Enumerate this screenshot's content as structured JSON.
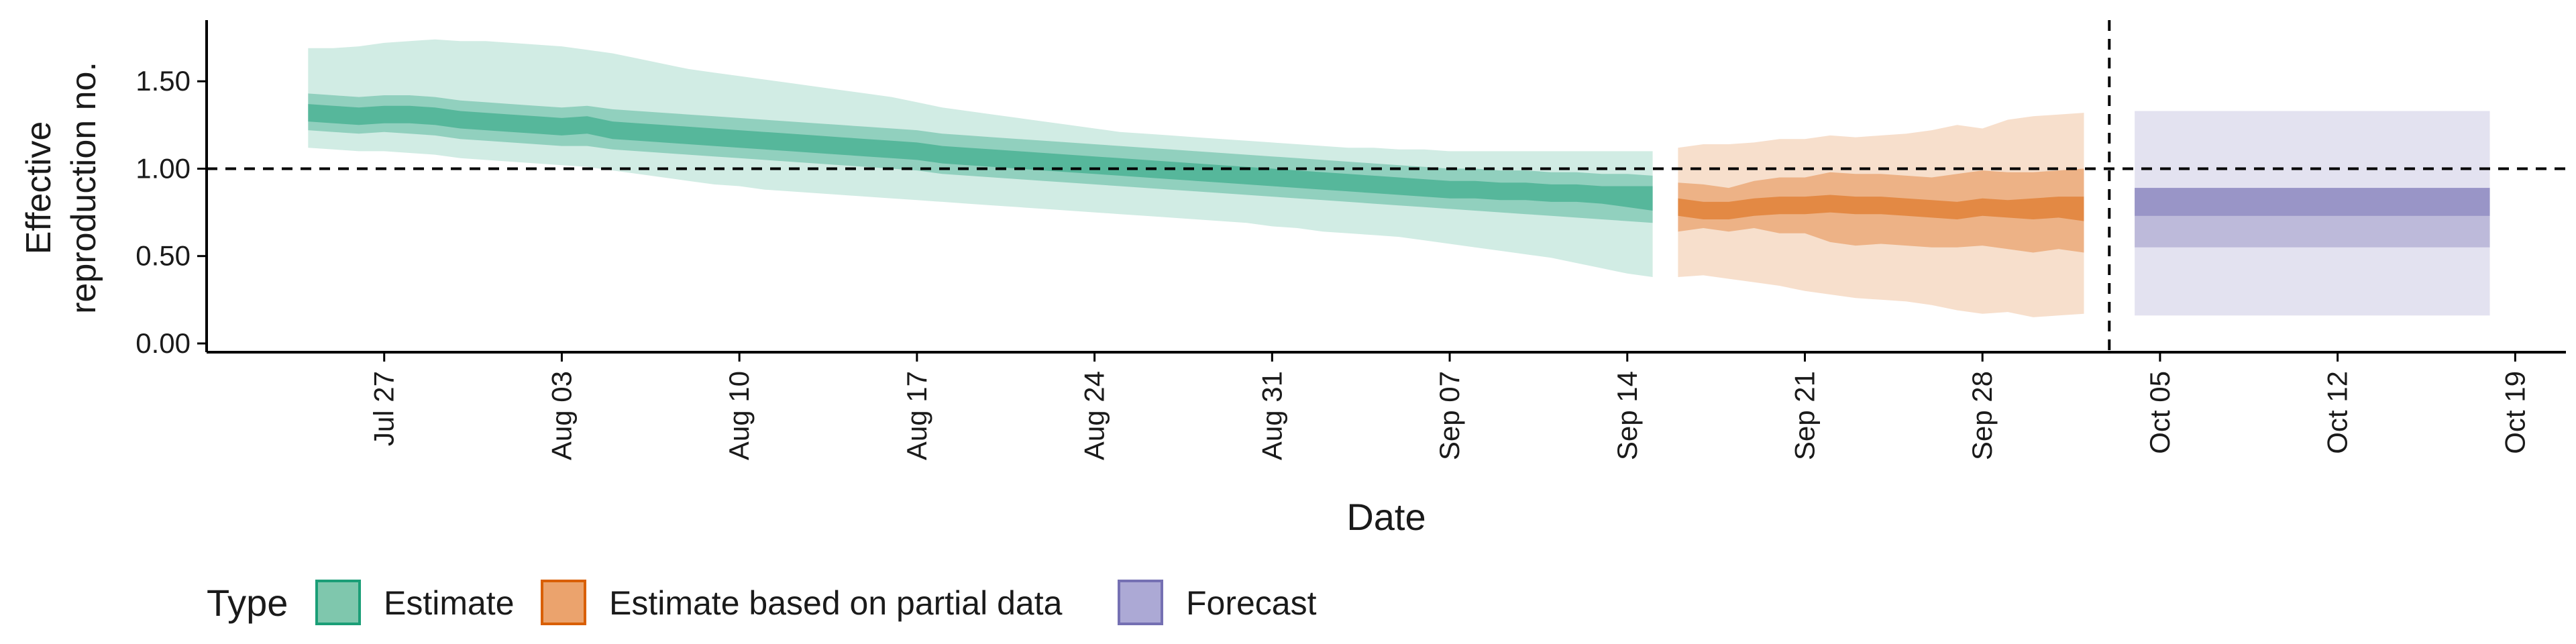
{
  "chart_data": {
    "type": "area",
    "title": "",
    "xlabel": "Date",
    "ylabel_lines": [
      "Effective",
      "reproduction no."
    ],
    "x_start": "2020-07-24",
    "xlim": [
      "2020-07-20",
      "2020-10-21"
    ],
    "ylim": [
      -0.05,
      1.85
    ],
    "y_ticks": [
      0.0,
      0.5,
      1.0,
      1.5
    ],
    "y_tick_labels": [
      "0.00",
      "0.50",
      "1.00",
      "1.50"
    ],
    "x_ticks": [
      "2020-07-27",
      "2020-08-03",
      "2020-08-10",
      "2020-08-17",
      "2020-08-24",
      "2020-08-31",
      "2020-09-07",
      "2020-09-14",
      "2020-09-21",
      "2020-09-28",
      "2020-10-05",
      "2020-10-12",
      "2020-10-19"
    ],
    "x_tick_labels": [
      "Jul 27",
      "Aug 03",
      "Aug 10",
      "Aug 17",
      "Aug 24",
      "Aug 31",
      "Sep 07",
      "Sep 14",
      "Sep 21",
      "Sep 28",
      "Oct 05",
      "Oct 12",
      "Oct 19"
    ],
    "hline": 1.0,
    "vline": "2020-10-03",
    "legend": {
      "title": "Type",
      "position": "bottom-left",
      "entries": [
        {
          "label": "Estimate",
          "fill": "#7fc7ad",
          "stroke": "#1b9e77"
        },
        {
          "label": "Estimate based on partial data",
          "fill": "#eba36d",
          "stroke": "#d95f02"
        },
        {
          "label": "Forecast",
          "fill": "#aca9d5",
          "stroke": "#7570b3"
        }
      ]
    },
    "series": [
      {
        "name": "Estimate",
        "color": "#1b9e77",
        "start": "2020-07-24",
        "days": 54,
        "median": [
          1.32,
          1.31,
          1.3,
          1.31,
          1.31,
          1.3,
          1.28,
          1.27,
          1.26,
          1.25,
          1.24,
          1.25,
          1.22,
          1.21,
          1.2,
          1.19,
          1.18,
          1.17,
          1.16,
          1.15,
          1.14,
          1.13,
          1.12,
          1.11,
          1.1,
          1.08,
          1.07,
          1.06,
          1.05,
          1.04,
          1.03,
          1.02,
          1.01,
          1.0,
          0.99,
          0.98,
          0.97,
          0.96,
          0.95,
          0.94,
          0.93,
          0.92,
          0.91,
          0.9,
          0.89,
          0.88,
          0.88,
          0.87,
          0.87,
          0.86,
          0.86,
          0.85,
          0.84,
          0.83
        ],
        "inner_lo": [
          1.27,
          1.26,
          1.25,
          1.26,
          1.26,
          1.25,
          1.23,
          1.22,
          1.21,
          1.2,
          1.19,
          1.2,
          1.17,
          1.16,
          1.15,
          1.14,
          1.13,
          1.12,
          1.11,
          1.1,
          1.09,
          1.08,
          1.07,
          1.06,
          1.05,
          1.03,
          1.02,
          1.01,
          1.0,
          0.99,
          0.98,
          0.97,
          0.96,
          0.95,
          0.94,
          0.93,
          0.92,
          0.91,
          0.9,
          0.89,
          0.88,
          0.87,
          0.86,
          0.85,
          0.84,
          0.83,
          0.83,
          0.82,
          0.82,
          0.81,
          0.81,
          0.8,
          0.78,
          0.76
        ],
        "inner_hi": [
          1.37,
          1.36,
          1.35,
          1.36,
          1.36,
          1.35,
          1.33,
          1.32,
          1.31,
          1.3,
          1.29,
          1.3,
          1.27,
          1.26,
          1.25,
          1.24,
          1.23,
          1.22,
          1.21,
          1.2,
          1.19,
          1.18,
          1.17,
          1.16,
          1.15,
          1.13,
          1.12,
          1.11,
          1.1,
          1.09,
          1.08,
          1.07,
          1.06,
          1.05,
          1.04,
          1.03,
          1.02,
          1.01,
          1.0,
          0.99,
          0.98,
          0.97,
          0.96,
          0.95,
          0.94,
          0.93,
          0.93,
          0.92,
          0.92,
          0.91,
          0.91,
          0.9,
          0.9,
          0.9
        ],
        "lo50": [
          1.22,
          1.21,
          1.2,
          1.21,
          1.2,
          1.19,
          1.17,
          1.16,
          1.15,
          1.14,
          1.13,
          1.13,
          1.11,
          1.1,
          1.09,
          1.08,
          1.07,
          1.06,
          1.05,
          1.04,
          1.03,
          1.02,
          1.01,
          1.0,
          0.99,
          0.97,
          0.96,
          0.95,
          0.94,
          0.93,
          0.92,
          0.91,
          0.9,
          0.89,
          0.88,
          0.87,
          0.86,
          0.85,
          0.84,
          0.83,
          0.82,
          0.81,
          0.8,
          0.79,
          0.78,
          0.77,
          0.76,
          0.75,
          0.74,
          0.73,
          0.72,
          0.71,
          0.7,
          0.69
        ],
        "hi50": [
          1.43,
          1.42,
          1.41,
          1.42,
          1.42,
          1.41,
          1.39,
          1.38,
          1.37,
          1.36,
          1.35,
          1.36,
          1.34,
          1.33,
          1.32,
          1.31,
          1.3,
          1.29,
          1.28,
          1.27,
          1.26,
          1.25,
          1.24,
          1.23,
          1.22,
          1.2,
          1.19,
          1.18,
          1.17,
          1.16,
          1.15,
          1.14,
          1.13,
          1.12,
          1.11,
          1.1,
          1.09,
          1.08,
          1.07,
          1.06,
          1.05,
          1.04,
          1.03,
          1.02,
          1.01,
          1.0,
          1.0,
          0.99,
          0.99,
          0.98,
          0.98,
          0.97,
          0.97,
          0.96
        ],
        "lo90": [
          1.12,
          1.11,
          1.1,
          1.1,
          1.09,
          1.08,
          1.06,
          1.05,
          1.04,
          1.03,
          1.02,
          1.01,
          0.99,
          0.97,
          0.95,
          0.93,
          0.91,
          0.9,
          0.88,
          0.87,
          0.86,
          0.85,
          0.84,
          0.83,
          0.82,
          0.81,
          0.8,
          0.79,
          0.78,
          0.77,
          0.76,
          0.75,
          0.74,
          0.73,
          0.72,
          0.71,
          0.7,
          0.69,
          0.67,
          0.66,
          0.64,
          0.63,
          0.62,
          0.61,
          0.59,
          0.57,
          0.55,
          0.53,
          0.51,
          0.49,
          0.46,
          0.43,
          0.4,
          0.38
        ],
        "hi90": [
          1.69,
          1.69,
          1.7,
          1.72,
          1.73,
          1.74,
          1.73,
          1.73,
          1.72,
          1.71,
          1.7,
          1.68,
          1.66,
          1.63,
          1.6,
          1.57,
          1.55,
          1.53,
          1.51,
          1.49,
          1.47,
          1.45,
          1.43,
          1.41,
          1.38,
          1.35,
          1.33,
          1.31,
          1.29,
          1.27,
          1.25,
          1.23,
          1.21,
          1.2,
          1.19,
          1.18,
          1.17,
          1.16,
          1.15,
          1.14,
          1.13,
          1.12,
          1.12,
          1.11,
          1.11,
          1.1,
          1.1,
          1.1,
          1.1,
          1.1,
          1.1,
          1.1,
          1.1,
          1.1
        ]
      },
      {
        "name": "Estimate based on partial data",
        "color": "#d95f02",
        "start": "2020-09-16",
        "days": 17,
        "median": [
          0.78,
          0.76,
          0.76,
          0.78,
          0.79,
          0.79,
          0.8,
          0.79,
          0.79,
          0.78,
          0.77,
          0.76,
          0.78,
          0.77,
          0.77,
          0.78,
          0.77
        ],
        "inner_lo": [
          0.73,
          0.71,
          0.71,
          0.73,
          0.74,
          0.74,
          0.75,
          0.74,
          0.74,
          0.73,
          0.72,
          0.71,
          0.73,
          0.72,
          0.71,
          0.72,
          0.7
        ],
        "inner_hi": [
          0.83,
          0.81,
          0.81,
          0.83,
          0.84,
          0.84,
          0.85,
          0.84,
          0.84,
          0.83,
          0.82,
          0.81,
          0.83,
          0.82,
          0.83,
          0.84,
          0.84
        ],
        "lo50": [
          0.64,
          0.66,
          0.64,
          0.66,
          0.63,
          0.63,
          0.58,
          0.56,
          0.57,
          0.56,
          0.55,
          0.55,
          0.56,
          0.54,
          0.52,
          0.54,
          0.52
        ],
        "hi50": [
          0.92,
          0.91,
          0.89,
          0.93,
          0.95,
          0.95,
          0.98,
          0.97,
          0.97,
          0.96,
          0.95,
          0.97,
          0.99,
          0.98,
          0.98,
          0.99,
          1.0
        ],
        "lo90": [
          0.38,
          0.39,
          0.37,
          0.35,
          0.33,
          0.3,
          0.28,
          0.26,
          0.25,
          0.24,
          0.22,
          0.19,
          0.17,
          0.18,
          0.15,
          0.16,
          0.17
        ],
        "hi90": [
          1.12,
          1.14,
          1.14,
          1.15,
          1.17,
          1.17,
          1.19,
          1.18,
          1.19,
          1.2,
          1.22,
          1.25,
          1.23,
          1.28,
          1.3,
          1.31,
          1.32
        ]
      },
      {
        "name": "Forecast",
        "color": "#7570b3",
        "start": "2020-10-04",
        "end": "2020-10-18",
        "median": 0.81,
        "inner_lo": 0.73,
        "inner_hi": 0.89,
        "lo50": 0.55,
        "hi50": 0.89,
        "lo90": 0.16,
        "hi90": 1.33
      }
    ]
  }
}
